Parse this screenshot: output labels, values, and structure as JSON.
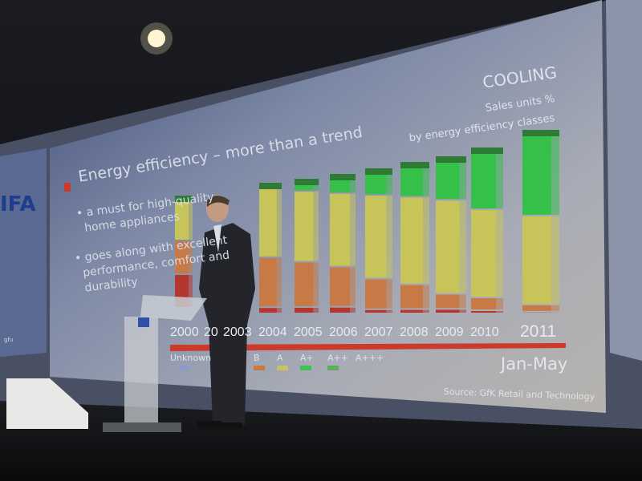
{
  "slide": {
    "title": "Energy efficiency – more than a trend",
    "bullets": [
      "a must for high-quality home appliances",
      "goes along with excellent performance, comfort and durability"
    ],
    "bullet_lines": [
      [
        "a must for high-quality",
        "home appliances"
      ],
      [
        "goes along with excellent",
        "performance, comfort and",
        "durability"
      ]
    ],
    "chart_heading": "COOLING",
    "chart_subtitle_1": "Sales units %",
    "chart_subtitle_2": "by energy efficiency classes",
    "years": [
      "2000",
      "20",
      "2003",
      "2004",
      "2005",
      "2006",
      "2007",
      "2008",
      "2009",
      "2010",
      "2011"
    ],
    "period_note": "Jan-May",
    "legend": [
      "Unknown",
      "B",
      "A",
      "A+",
      "A++",
      "A+++"
    ],
    "source": "Source: GfK Retail and Technology",
    "logo_text": "IFA",
    "side_logo_text": "gfu"
  },
  "colors": {
    "green": "#35c04a",
    "dark_green": "#2f7a35",
    "yellow": "#c7c45a",
    "orange": "#c77a45",
    "red": "#b3362f",
    "accent_red": "#cc3a2c",
    "screen": "#8e96ad"
  }
}
